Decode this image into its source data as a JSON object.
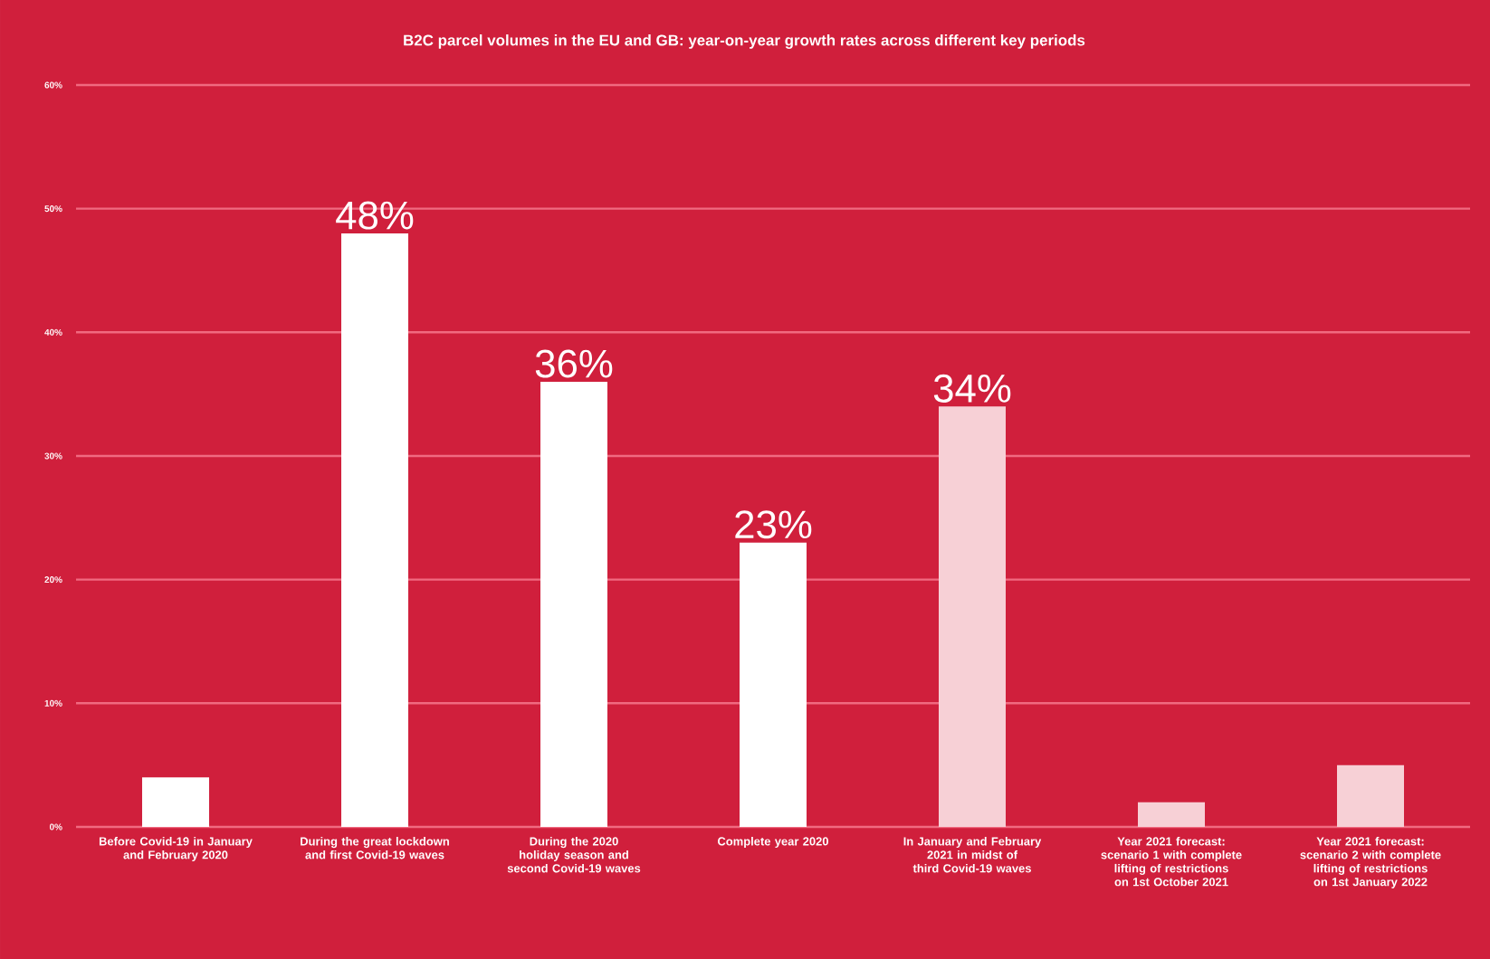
{
  "chart_data": {
    "type": "bar",
    "title": "B2C parcel volumes in the EU and GB: year-on-year growth rates across different key periods",
    "categories": [
      "Before Covid-19 in January and February 2020",
      "During the great lockdown and first Covid-19 waves",
      "During the 2020 holiday season and second Covid-19 waves",
      "Complete year 2020",
      "In January and February 2021 in midst of third Covid-19 waves",
      "Year 2021 forecast: scenario 1 with complete lifting of restrictions on 1st October 2021",
      "Year 2021 forecast: scenario 2 with complete lifting of restrictions on 1st January 2022"
    ],
    "values": [
      4,
      48,
      36,
      23,
      34,
      2,
      5
    ],
    "value_labels": [
      null,
      "48%",
      "36%",
      "23%",
      "34%",
      null,
      null
    ],
    "colors": [
      "#ffffff",
      "#ffffff",
      "#ffffff",
      "#ffffff",
      "#f7d0d6",
      "#f7d0d6",
      "#f7d0d6"
    ],
    "ylim": [
      0,
      60
    ],
    "yticks": [
      {
        "value": 0,
        "label": "0%"
      },
      {
        "value": 10,
        "label": "10%"
      },
      {
        "value": 20,
        "label": "20%"
      },
      {
        "value": 30,
        "label": "30%"
      },
      {
        "value": 40,
        "label": "40%"
      },
      {
        "value": 50,
        "label": "50%"
      },
      {
        "value": 60,
        "label": "60%"
      }
    ],
    "grid": "y"
  }
}
